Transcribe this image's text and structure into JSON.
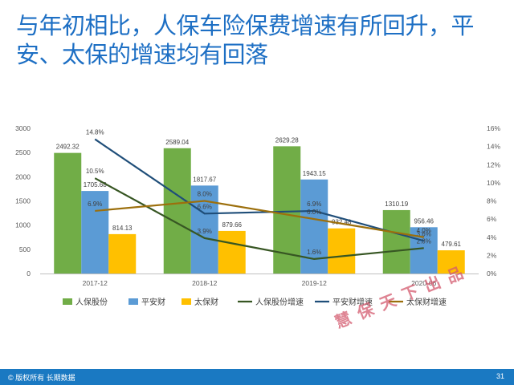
{
  "title": "与年初相比，人保车险保费增速有所回升，平安、太保的增速均有回落",
  "watermark": "慧保天下出品",
  "footer": {
    "left": "© 版权所有 长期数据",
    "page": "31"
  },
  "colors": {
    "renbao": "#71ad47",
    "pingan": "#5b9bd5",
    "taibao": "#ffc000",
    "renbao_growth": "#375623",
    "pingan_growth": "#1f4e79",
    "taibao_growth": "#9c6f0c"
  },
  "chart_data": {
    "type": "bar",
    "categories": [
      "2017-12",
      "2018-12",
      "2019-12",
      "2020-06"
    ],
    "series": [
      {
        "name": "人保股份",
        "type": "bar",
        "axis": "left",
        "values": [
          2492.32,
          2589.04,
          2629.28,
          1310.19
        ],
        "labels": [
          "2492.32",
          "2589.04",
          "2629.28",
          "1310.19"
        ]
      },
      {
        "name": "平安财",
        "type": "bar",
        "axis": "left",
        "values": [
          1705.68,
          1817.67,
          1943.15,
          956.46
        ],
        "labels": [
          "1705.68",
          "1817.67",
          "1943.15",
          "956.46"
        ]
      },
      {
        "name": "太保财",
        "type": "bar",
        "axis": "left",
        "values": [
          814.13,
          879.66,
          932.48,
          479.61
        ],
        "labels": [
          "814.13",
          "879.66",
          "932.48",
          "479.61"
        ]
      },
      {
        "name": "人保股份增速",
        "type": "line",
        "axis": "right",
        "values": [
          10.5,
          3.9,
          1.6,
          2.8
        ],
        "labels": [
          "10.5%",
          "3.9%",
          "1.6%",
          "2.8%"
        ]
      },
      {
        "name": "平安财增速",
        "type": "line",
        "axis": "right",
        "values": [
          14.8,
          6.6,
          6.9,
          3.6
        ],
        "labels": [
          "14.8%",
          "6.6%",
          "6.9%",
          "3.6%"
        ]
      },
      {
        "name": "太保财增速",
        "type": "line",
        "axis": "right",
        "values": [
          6.9,
          8.0,
          6.0,
          4.0
        ],
        "labels": [
          "6.9%",
          "8.0%",
          "6.0%",
          "4.0%"
        ]
      }
    ],
    "y_left": {
      "ticks": [
        "0",
        "500",
        "1000",
        "1500",
        "2000",
        "2500",
        "3000"
      ],
      "ylim": [
        0,
        3000
      ]
    },
    "y_right": {
      "ticks": [
        "0%",
        "2%",
        "4%",
        "6%",
        "8%",
        "10%",
        "12%",
        "14%",
        "16%"
      ],
      "ylim": [
        0,
        16
      ]
    },
    "grid": false,
    "legend_position": "bottom"
  }
}
